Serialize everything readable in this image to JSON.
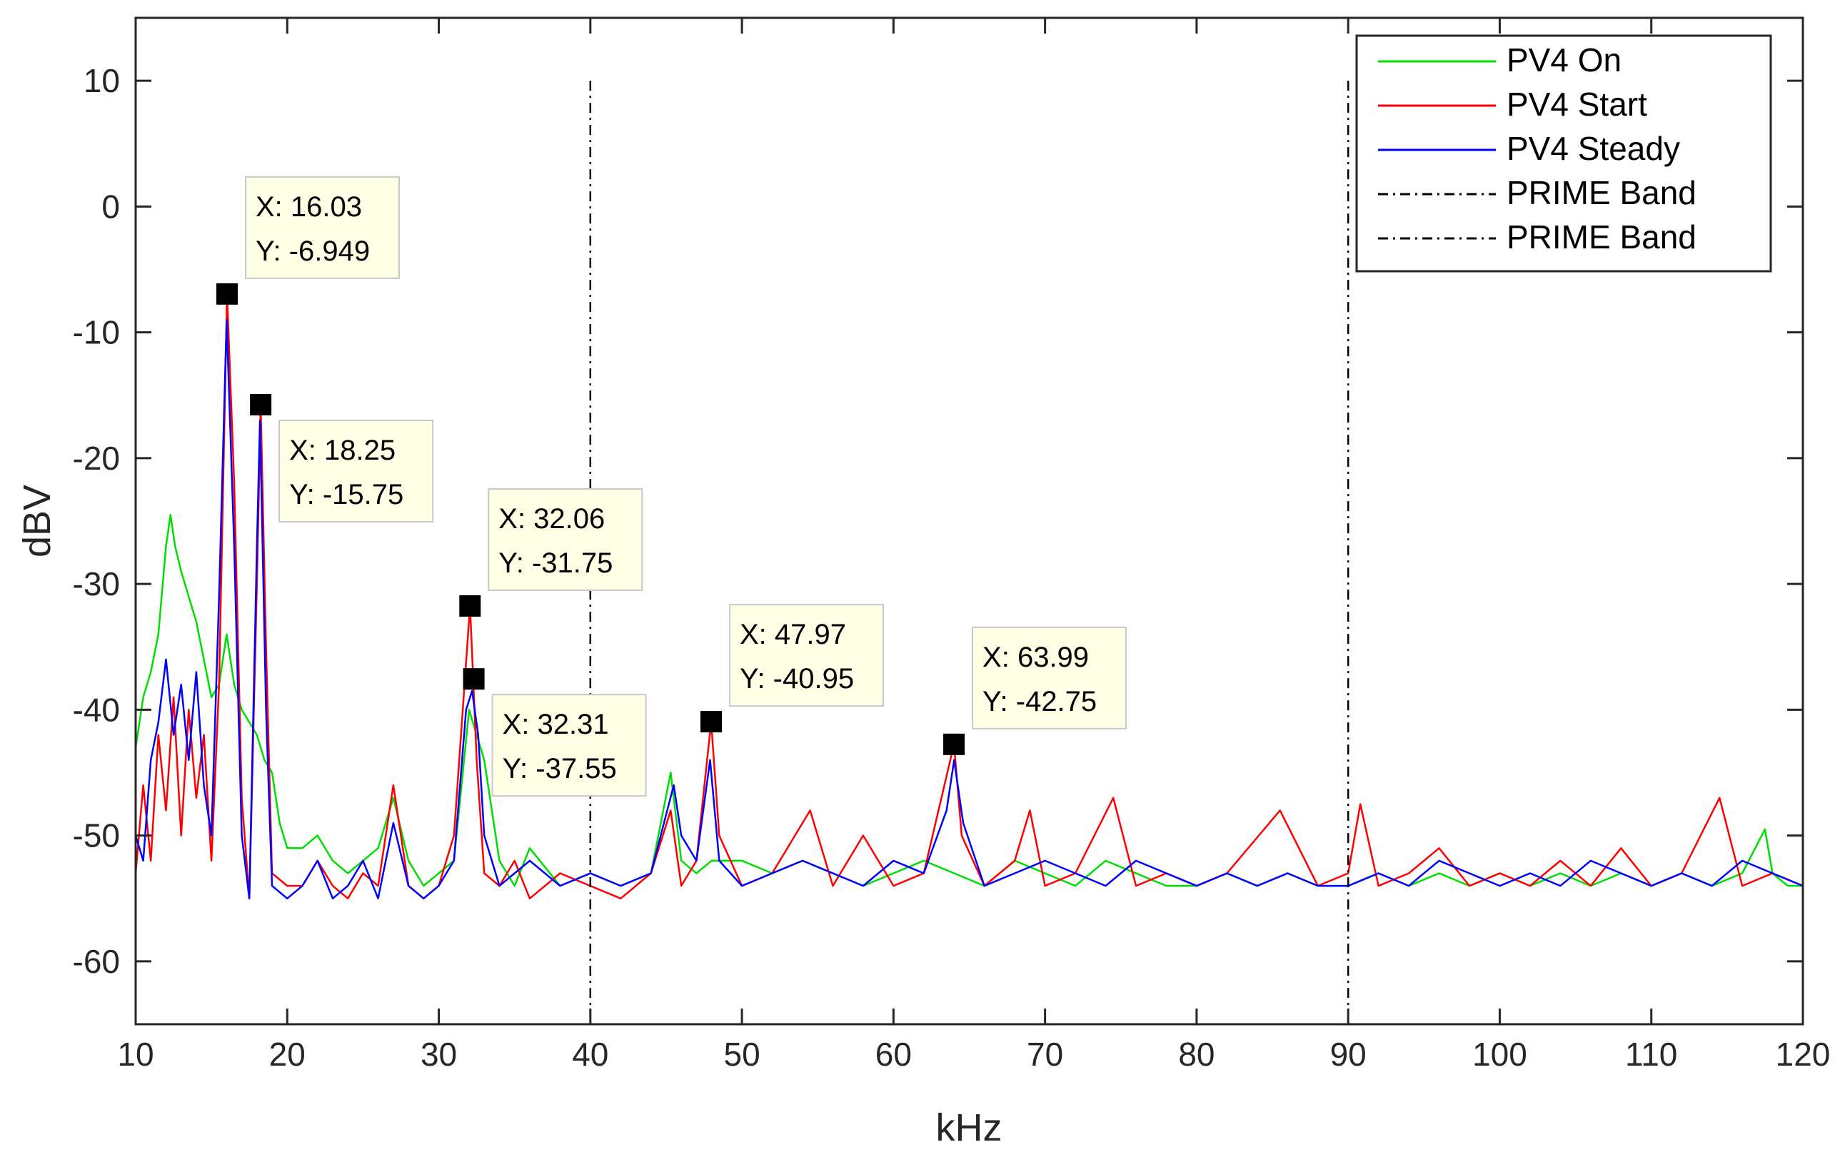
{
  "chart_data": {
    "type": "line",
    "title": "",
    "xlabel": "kHz",
    "ylabel": "dBV",
    "xlim": [
      10,
      120
    ],
    "ylim": [
      -65,
      15
    ],
    "xticks": [
      10,
      20,
      30,
      40,
      50,
      60,
      70,
      80,
      90,
      100,
      110,
      120
    ],
    "yticks": [
      10,
      0,
      -10,
      -20,
      -30,
      -40,
      -50,
      -60
    ],
    "legend_position": "top-right",
    "series": [
      {
        "name": "PV4 On",
        "color": "#00dd00",
        "x": [
          10,
          10.5,
          11,
          11.5,
          12,
          12.3,
          12.6,
          13,
          13.5,
          14,
          14.5,
          15,
          15.5,
          16,
          16.5,
          17,
          17.5,
          18,
          18.5,
          19,
          19.5,
          20,
          21,
          22,
          23,
          24,
          25,
          26,
          27,
          28,
          29,
          30,
          31,
          32,
          33,
          34,
          35,
          36,
          38,
          40,
          42,
          44,
          45.3,
          46,
          47,
          48,
          50,
          52,
          54,
          56,
          58,
          60,
          62,
          64,
          66,
          68,
          70,
          72,
          74,
          76,
          78,
          80,
          82,
          84,
          86,
          88,
          90,
          92,
          94,
          96,
          98,
          100,
          102,
          104,
          106,
          108,
          110,
          112,
          114,
          116,
          117.5,
          118,
          119,
          120
        ],
        "y": [
          -43,
          -39,
          -37,
          -34,
          -27,
          -24.5,
          -27,
          -29,
          -31,
          -33,
          -36,
          -39,
          -38,
          -34,
          -38,
          -40,
          -41,
          -42,
          -44,
          -45,
          -49,
          -51,
          -51,
          -50,
          -52,
          -53,
          -52,
          -51,
          -47,
          -52,
          -54,
          -53,
          -52,
          -40,
          -44,
          -52,
          -54,
          -51,
          -54,
          -53,
          -54,
          -53,
          -45,
          -52,
          -53,
          -52,
          -52,
          -53,
          -52,
          -53,
          -54,
          -53,
          -52,
          -53,
          -54,
          -52,
          -53,
          -54,
          -52,
          -53,
          -54,
          -54,
          -53,
          -54,
          -53,
          -54,
          -54,
          -53,
          -54,
          -53,
          -54,
          -53,
          -54,
          -53,
          -54,
          -53,
          -54,
          -53,
          -54,
          -53,
          -49.5,
          -53,
          -54,
          -54
        ]
      },
      {
        "name": "PV4 Start",
        "color": "#ff0000",
        "x": [
          10,
          10.5,
          11,
          11.5,
          12,
          12.5,
          13,
          13.5,
          14,
          14.5,
          15,
          15.5,
          16.03,
          16.5,
          17,
          17.5,
          18,
          18.25,
          18.6,
          19,
          20,
          21,
          22,
          23,
          24,
          25,
          26,
          27,
          28,
          29,
          30,
          31,
          32.06,
          32.5,
          33,
          34,
          35,
          36,
          38,
          40,
          42,
          44,
          45.3,
          46,
          47,
          47.97,
          48.5,
          50,
          52,
          54.5,
          56,
          58,
          60,
          62,
          63.99,
          64.5,
          66,
          68,
          69,
          70,
          72,
          74.5,
          76,
          78,
          80,
          82,
          85.5,
          88,
          90,
          90.8,
          92,
          94,
          96,
          98,
          100,
          102,
          104,
          106,
          108,
          110,
          112,
          114.5,
          116,
          118,
          120
        ],
        "y": [
          -53,
          -46,
          -52,
          -42,
          -48,
          -39,
          -50,
          -40,
          -47,
          -42,
          -52,
          -38,
          -6.949,
          -22,
          -47,
          -55,
          -30,
          -15.75,
          -35,
          -53,
          -54,
          -54,
          -52,
          -54,
          -55,
          -53,
          -54,
          -46,
          -54,
          -55,
          -54,
          -50,
          -31.75,
          -44,
          -53,
          -54,
          -52,
          -55,
          -53,
          -54,
          -55,
          -53,
          -48,
          -54,
          -52,
          -40.95,
          -50,
          -54,
          -53,
          -48,
          -54,
          -50,
          -54,
          -53,
          -42.75,
          -50,
          -54,
          -52,
          -48,
          -54,
          -53,
          -47,
          -54,
          -53,
          -54,
          -53,
          -48,
          -54,
          -53,
          -47.5,
          -54,
          -53,
          -51,
          -54,
          -53,
          -54,
          -52,
          -54,
          -51,
          -54,
          -53,
          -47,
          -54,
          -53,
          -54
        ]
      },
      {
        "name": "PV4 Steady",
        "color": "#0000ff",
        "x": [
          10,
          10.5,
          11,
          11.5,
          12,
          12.5,
          13,
          13.5,
          14,
          14.5,
          15,
          15.5,
          16,
          16.5,
          17,
          17.5,
          18,
          18.2,
          18.6,
          19,
          20,
          21,
          22,
          23,
          24,
          25,
          26,
          27,
          28,
          29,
          30,
          31,
          31.8,
          32.2,
          32.6,
          33,
          34,
          35,
          36,
          38,
          40,
          42,
          44,
          45.5,
          46,
          47,
          47.9,
          48.5,
          50,
          52,
          54,
          56,
          58,
          60,
          62,
          63.5,
          64,
          64.6,
          66,
          68,
          70,
          72,
          74,
          76,
          78,
          80,
          82,
          84,
          86,
          88,
          90,
          92,
          94,
          96,
          98,
          100,
          102,
          104,
          106,
          108,
          110,
          112,
          114,
          116,
          118,
          120
        ],
        "y": [
          -50,
          -52,
          -44,
          -41,
          -36,
          -42,
          -38,
          -44,
          -37,
          -46,
          -50,
          -31,
          -9,
          -27,
          -50,
          -55,
          -27,
          -17,
          -40,
          -54,
          -55,
          -54,
          -52,
          -55,
          -54,
          -52,
          -55,
          -49,
          -54,
          -55,
          -54,
          -52,
          -40,
          -38.5,
          -42,
          -50,
          -54,
          -53,
          -52,
          -54,
          -53,
          -54,
          -53,
          -46,
          -50,
          -52,
          -44,
          -52,
          -54,
          -53,
          -52,
          -53,
          -54,
          -52,
          -53,
          -48,
          -44,
          -49,
          -54,
          -53,
          -52,
          -53,
          -54,
          -52,
          -53,
          -54,
          -53,
          -54,
          -53,
          -54,
          -54,
          -53,
          -54,
          -52,
          -53,
          -54,
          -53,
          -54,
          -52,
          -53,
          -54,
          -53,
          -54,
          -52,
          -53,
          -54
        ]
      },
      {
        "name": "PRIME Band",
        "color": "#000000",
        "style": "dash-dot",
        "x": [
          40,
          40
        ],
        "y": [
          10,
          -65
        ]
      },
      {
        "name": "PRIME Band",
        "color": "#000000",
        "style": "dash-dot",
        "x": [
          90,
          90
        ],
        "y": [
          10,
          -65
        ]
      }
    ],
    "annotations": [
      {
        "x": 16.03,
        "y": -6.949,
        "x_text": "X: 16.03",
        "y_text": "Y: -6.949",
        "anchor": "top-right"
      },
      {
        "x": 18.25,
        "y": -15.75,
        "x_text": "X: 18.25",
        "y_text": "Y: -15.75",
        "anchor": "bottom-right"
      },
      {
        "x": 32.06,
        "y": -31.75,
        "x_text": "X: 32.06",
        "y_text": "Y: -31.75",
        "anchor": "top-right"
      },
      {
        "x": 32.31,
        "y": -37.55,
        "x_text": "X: 32.31",
        "y_text": "Y: -37.55",
        "anchor": "bottom-right"
      },
      {
        "x": 47.97,
        "y": -40.95,
        "x_text": "X: 47.97",
        "y_text": "Y: -40.95",
        "anchor": "top-right"
      },
      {
        "x": 63.99,
        "y": -42.75,
        "x_text": "X: 63.99",
        "y_text": "Y: -42.75",
        "anchor": "top-right"
      }
    ]
  }
}
